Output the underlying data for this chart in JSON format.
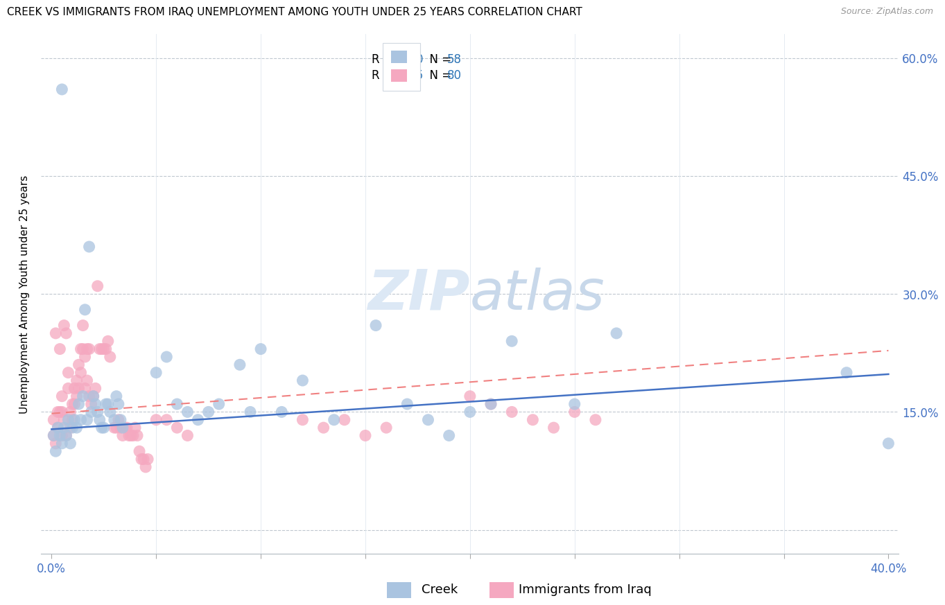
{
  "title": "CREEK VS IMMIGRANTS FROM IRAQ UNEMPLOYMENT AMONG YOUTH UNDER 25 YEARS CORRELATION CHART",
  "source": "Source: ZipAtlas.com",
  "ylabel": "Unemployment Among Youth under 25 years",
  "y_ticks": [
    0.0,
    0.15,
    0.3,
    0.45,
    0.6
  ],
  "y_tick_labels": [
    "",
    "15.0%",
    "30.0%",
    "45.0%",
    "60.0%"
  ],
  "x_ticks": [
    0.0,
    0.05,
    0.1,
    0.15,
    0.2,
    0.25,
    0.3,
    0.35,
    0.4
  ],
  "creek_R": "0.120",
  "creek_N": "58",
  "iraq_R": "0.105",
  "iraq_N": "80",
  "creek_color": "#aac4e0",
  "iraq_color": "#f5a8c0",
  "creek_line_color": "#4472c4",
  "iraq_line_color": "#f08080",
  "legend_color": "#2e75b6",
  "watermark_color": "#dce8f5",
  "creek_x": [
    0.001,
    0.002,
    0.003,
    0.004,
    0.005,
    0.005,
    0.006,
    0.007,
    0.008,
    0.009,
    0.01,
    0.011,
    0.012,
    0.013,
    0.014,
    0.015,
    0.016,
    0.017,
    0.018,
    0.019,
    0.02,
    0.021,
    0.022,
    0.023,
    0.024,
    0.025,
    0.026,
    0.027,
    0.028,
    0.03,
    0.031,
    0.032,
    0.033,
    0.034,
    0.05,
    0.055,
    0.06,
    0.065,
    0.07,
    0.075,
    0.08,
    0.09,
    0.095,
    0.1,
    0.11,
    0.12,
    0.135,
    0.155,
    0.17,
    0.18,
    0.19,
    0.2,
    0.21,
    0.22,
    0.25,
    0.27,
    0.38,
    0.4
  ],
  "creek_y": [
    0.12,
    0.1,
    0.13,
    0.12,
    0.56,
    0.11,
    0.13,
    0.12,
    0.14,
    0.11,
    0.13,
    0.14,
    0.13,
    0.16,
    0.14,
    0.17,
    0.28,
    0.14,
    0.36,
    0.15,
    0.17,
    0.16,
    0.15,
    0.14,
    0.13,
    0.13,
    0.16,
    0.16,
    0.15,
    0.14,
    0.17,
    0.16,
    0.14,
    0.13,
    0.2,
    0.22,
    0.16,
    0.15,
    0.14,
    0.15,
    0.16,
    0.21,
    0.15,
    0.23,
    0.15,
    0.19,
    0.14,
    0.26,
    0.16,
    0.14,
    0.12,
    0.15,
    0.16,
    0.24,
    0.16,
    0.25,
    0.2,
    0.11
  ],
  "iraq_x": [
    0.001,
    0.001,
    0.002,
    0.002,
    0.003,
    0.003,
    0.004,
    0.004,
    0.005,
    0.005,
    0.005,
    0.006,
    0.006,
    0.007,
    0.007,
    0.008,
    0.008,
    0.009,
    0.009,
    0.01,
    0.01,
    0.011,
    0.011,
    0.012,
    0.012,
    0.013,
    0.013,
    0.014,
    0.014,
    0.015,
    0.015,
    0.016,
    0.016,
    0.017,
    0.017,
    0.018,
    0.018,
    0.019,
    0.02,
    0.021,
    0.022,
    0.023,
    0.024,
    0.025,
    0.026,
    0.027,
    0.028,
    0.03,
    0.031,
    0.032,
    0.033,
    0.034,
    0.035,
    0.036,
    0.037,
    0.038,
    0.039,
    0.04,
    0.041,
    0.042,
    0.043,
    0.044,
    0.045,
    0.046,
    0.05,
    0.055,
    0.06,
    0.065,
    0.12,
    0.13,
    0.14,
    0.15,
    0.16,
    0.2,
    0.21,
    0.22,
    0.23,
    0.24,
    0.25,
    0.26
  ],
  "iraq_y": [
    0.14,
    0.12,
    0.25,
    0.11,
    0.15,
    0.13,
    0.23,
    0.15,
    0.17,
    0.15,
    0.12,
    0.26,
    0.14,
    0.25,
    0.12,
    0.2,
    0.18,
    0.15,
    0.13,
    0.16,
    0.14,
    0.18,
    0.16,
    0.19,
    0.17,
    0.21,
    0.18,
    0.23,
    0.2,
    0.26,
    0.23,
    0.22,
    0.18,
    0.23,
    0.19,
    0.23,
    0.17,
    0.16,
    0.17,
    0.18,
    0.31,
    0.23,
    0.23,
    0.23,
    0.23,
    0.24,
    0.22,
    0.13,
    0.13,
    0.14,
    0.13,
    0.12,
    0.13,
    0.13,
    0.12,
    0.12,
    0.12,
    0.13,
    0.12,
    0.1,
    0.09,
    0.09,
    0.08,
    0.09,
    0.14,
    0.14,
    0.13,
    0.12,
    0.14,
    0.13,
    0.14,
    0.12,
    0.13,
    0.17,
    0.16,
    0.15,
    0.14,
    0.13,
    0.15,
    0.14
  ]
}
